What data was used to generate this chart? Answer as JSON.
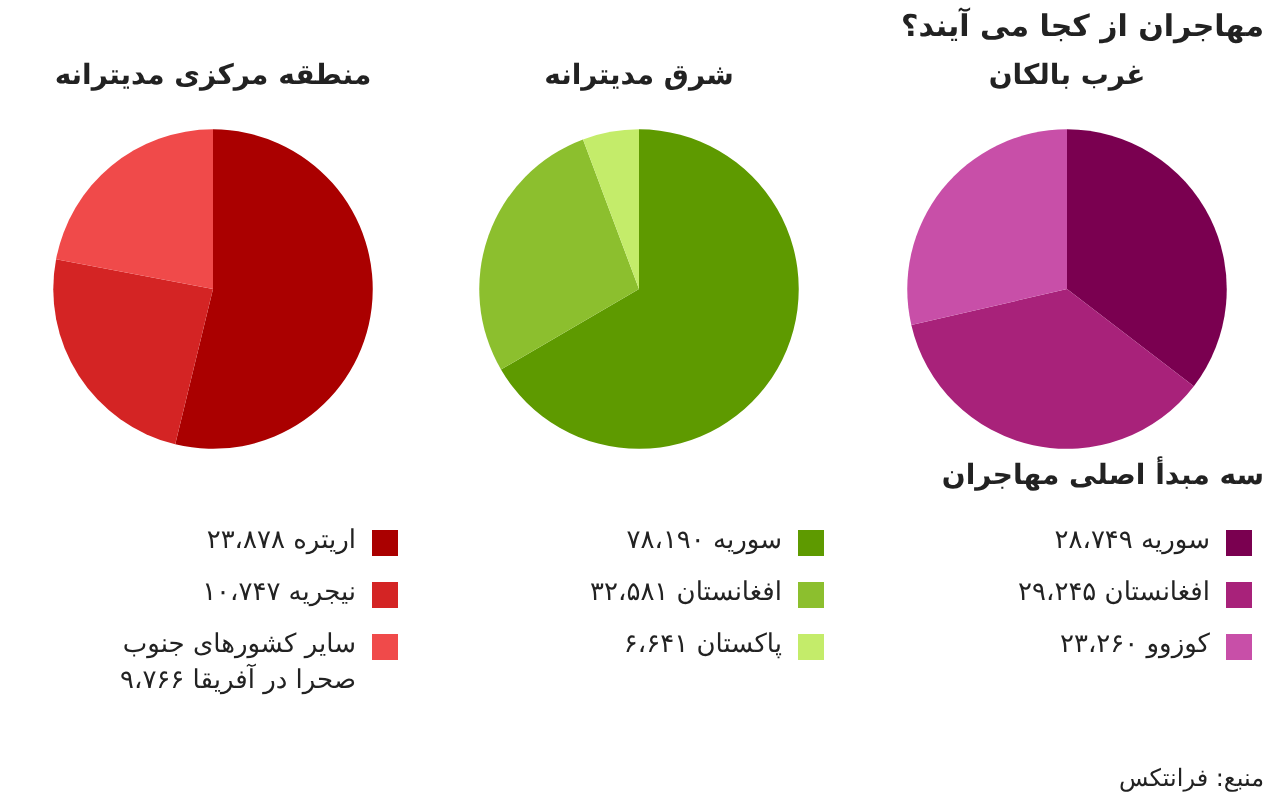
{
  "chart_data": [
    {
      "type": "pie",
      "title": "غرب بالکان",
      "categories": [
        "سوریه ۲۸،۷۴۹",
        "افغانستان ۲۹،۲۴۵",
        "کوزوو ۲۳،۲۶۰"
      ],
      "values": [
        35.4,
        36.0,
        28.6
      ],
      "colors": [
        "#7a0050",
        "#a8227a",
        "#c84fa8"
      ],
      "legend": "bottom",
      "annotations": [
        "مهاجران از کجا می آیند؟",
        "سه مبدأ اصلی مهاجران",
        "منبع: فرانتکس"
      ]
    },
    {
      "type": "pie",
      "title": "شرق مدیترانه",
      "categories": [
        "سوریه ۷۸،۱۹۰",
        "افغانستان ۳۲،۵۸۱",
        "پاکستان ۶،۶۴۱"
      ],
      "values": [
        66.6,
        27.7,
        5.7
      ],
      "colors": [
        "#5e9a00",
        "#8cbf2e",
        "#c4ec6a"
      ],
      "legend": "bottom"
    },
    {
      "type": "pie",
      "title": "منطقه مرکزی مدیترانه",
      "categories": [
        "اریتره ۲۳،۸۷۸",
        "نیجریه ۱۰،۷۴۷",
        "سایر کشورهای جنوب صحرا در آفریقا ۹،۷۶۶"
      ],
      "values": [
        53.8,
        24.2,
        22.0
      ],
      "colors": [
        "#aa0000",
        "#d42424",
        "#f04a4a"
      ],
      "legend": "bottom"
    }
  ]
}
